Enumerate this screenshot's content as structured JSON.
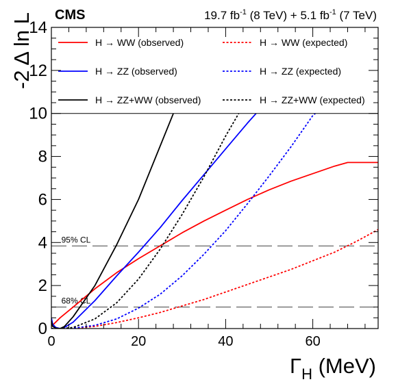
{
  "chart_data": {
    "type": "line",
    "experiment": "CMS",
    "lumi": {
      "part1": "19.7 fb",
      "sup1": "-1",
      "part2": " (8 TeV) + 5.1 fb",
      "sup2": "-1",
      "part3": " (7 TeV)"
    },
    "xlabel": {
      "main": "Γ",
      "sub": "H",
      "unit": " (MeV)"
    },
    "ylabel": "-2 Δ ln L",
    "xlim": [
      0,
      75
    ],
    "ylim": [
      0,
      14
    ],
    "x_ticks": [
      "0",
      "20",
      "40",
      "60"
    ],
    "x_tick_values": [
      0,
      20,
      40,
      60
    ],
    "y_ticks": [
      "0",
      "2",
      "4",
      "6",
      "8",
      "10",
      "12",
      "14"
    ],
    "y_tick_values": [
      0,
      2,
      4,
      6,
      8,
      10,
      12,
      14
    ],
    "reference_lines": [
      {
        "label": "95% CL",
        "y": 3.84
      },
      {
        "label": "68% CL",
        "y": 1.0
      }
    ],
    "legend": [
      {
        "label": "H → WW (observed)",
        "series": 0
      },
      {
        "label": "H → WW (expected)",
        "series": 1
      },
      {
        "label": "H → ZZ (observed)",
        "series": 2
      },
      {
        "label": "H → ZZ (expected)",
        "series": 3
      },
      {
        "label": "H → ZZ+WW (observed)",
        "series": 4
      },
      {
        "label": "H → ZZ+WW (expected)",
        "series": 5
      }
    ],
    "series": [
      {
        "name": "H → WW (observed)",
        "color": "#ff0000",
        "style": "solid",
        "x": [
          0,
          2,
          5,
          10,
          15,
          20,
          25,
          30,
          35,
          40,
          45,
          50,
          55,
          60,
          65,
          68,
          75
        ],
        "y": [
          0.1,
          0.5,
          1.0,
          1.85,
          2.6,
          3.25,
          3.85,
          4.45,
          5.0,
          5.5,
          6.0,
          6.45,
          6.85,
          7.2,
          7.55,
          7.72,
          7.72
        ]
      },
      {
        "name": "H → WW (expected)",
        "color": "#ff0000",
        "style": "dotted",
        "x": [
          0,
          5,
          10,
          15,
          20,
          25,
          30,
          35,
          40,
          45,
          50,
          55,
          60,
          65,
          70,
          75
        ],
        "y": [
          0,
          0.01,
          0.1,
          0.28,
          0.5,
          0.75,
          1.05,
          1.35,
          1.7,
          2.05,
          2.4,
          2.75,
          3.15,
          3.55,
          4.05,
          4.6
        ]
      },
      {
        "name": "H → ZZ (observed)",
        "color": "#0000ff",
        "style": "solid",
        "x": [
          0,
          0.3,
          1,
          2,
          3,
          5,
          10,
          15,
          20,
          25,
          30,
          35,
          40,
          45,
          47
        ],
        "y": [
          0.5,
          0.2,
          0.05,
          0,
          0.05,
          0.3,
          1.3,
          2.45,
          3.55,
          4.7,
          5.95,
          7.15,
          8.35,
          9.55,
          10.0
        ]
      },
      {
        "name": "H → ZZ (expected)",
        "color": "#0000ff",
        "style": "dotted",
        "x": [
          0,
          5,
          10,
          15,
          20,
          25,
          30,
          35,
          40,
          45,
          50,
          55,
          60,
          60.6
        ],
        "y": [
          0,
          0.02,
          0.15,
          0.45,
          0.95,
          1.6,
          2.45,
          3.45,
          4.55,
          5.8,
          7.1,
          8.45,
          9.9,
          10.0
        ]
      },
      {
        "name": "H → ZZ+WW (observed)",
        "color": "#000000",
        "style": "solid",
        "x": [
          0,
          0.3,
          1,
          2,
          3,
          5,
          10,
          15,
          20,
          25,
          28
        ],
        "y": [
          0.35,
          0.1,
          0.02,
          0,
          0.1,
          0.55,
          2.0,
          3.9,
          6.0,
          8.5,
          10.0
        ]
      },
      {
        "name": "H → ZZ+WW (expected)",
        "color": "#000000",
        "style": "dotted",
        "x": [
          0,
          2,
          5,
          10,
          15,
          20,
          25,
          30,
          35,
          40,
          43
        ],
        "y": [
          0,
          0,
          0.05,
          0.45,
          1.2,
          2.3,
          3.7,
          5.3,
          7.05,
          8.95,
          10.0
        ]
      }
    ]
  }
}
